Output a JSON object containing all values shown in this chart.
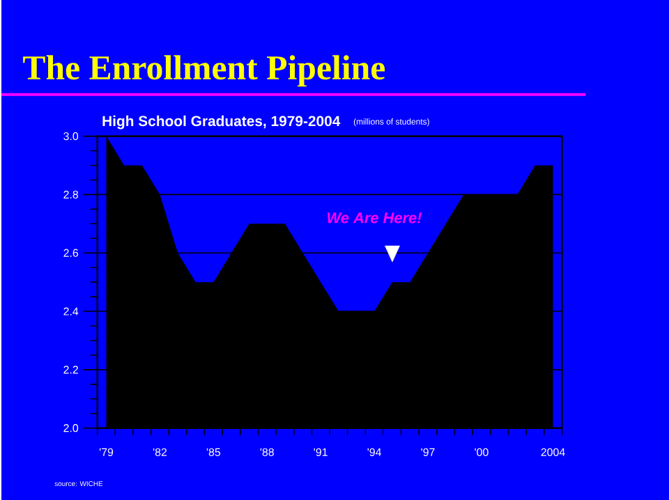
{
  "chart_data": {
    "type": "area",
    "title": "The Enrollment Pipeline",
    "subtitle": "High School Graduates, 1979-2004",
    "ylabel": "(millions of students)",
    "x": [
      1979,
      1980,
      1981,
      1982,
      1983,
      1984,
      1985,
      1986,
      1987,
      1988,
      1989,
      1990,
      1991,
      1992,
      1993,
      1994,
      1995,
      1996,
      1997,
      1998,
      1999,
      2000,
      2001,
      2002,
      2003,
      2004
    ],
    "values": [
      3.0,
      2.9,
      2.9,
      2.8,
      2.6,
      2.5,
      2.5,
      2.6,
      2.7,
      2.7,
      2.7,
      2.6,
      2.5,
      2.4,
      2.4,
      2.4,
      2.5,
      2.5,
      2.6,
      2.7,
      2.8,
      2.8,
      2.8,
      2.8,
      2.9,
      2.9
    ],
    "color": "#000000",
    "xlim": [
      1978.5,
      2004.5
    ],
    "ylim": [
      2.0,
      3.0
    ],
    "xticks": [
      {
        "value": 1979,
        "label": "'79"
      },
      {
        "value": 1982,
        "label": "'82"
      },
      {
        "value": 1985,
        "label": "'85"
      },
      {
        "value": 1988,
        "label": "'88"
      },
      {
        "value": 1991,
        "label": "'91"
      },
      {
        "value": 1994,
        "label": "'94"
      },
      {
        "value": 1997,
        "label": "'97"
      },
      {
        "value": 2000,
        "label": "'00"
      },
      {
        "value": 2004,
        "label": "2004"
      },
      {
        "value": 1978.5,
        "label": null
      },
      {
        "value": 1979.5,
        "label": null
      },
      {
        "value": 1980.5,
        "label": null
      },
      {
        "value": 1981.5,
        "label": null
      },
      {
        "value": 1982.5,
        "label": null
      },
      {
        "value": 1983.5,
        "label": null
      },
      {
        "value": 1984.5,
        "label": null
      },
      {
        "value": 1985.5,
        "label": null
      },
      {
        "value": 1986.5,
        "label": null
      },
      {
        "value": 1987.5,
        "label": null
      },
      {
        "value": 1988.5,
        "label": null
      },
      {
        "value": 1989.5,
        "label": null
      },
      {
        "value": 1990.5,
        "label": null
      },
      {
        "value": 1991.5,
        "label": null
      },
      {
        "value": 1992.5,
        "label": null
      },
      {
        "value": 1993.5,
        "label": null
      },
      {
        "value": 1994.5,
        "label": null
      },
      {
        "value": 1995.5,
        "label": null
      },
      {
        "value": 1996.5,
        "label": null
      },
      {
        "value": 1997.5,
        "label": null
      },
      {
        "value": 1998.5,
        "label": null
      },
      {
        "value": 1999.5,
        "label": null
      },
      {
        "value": 2000.5,
        "label": null
      },
      {
        "value": 2001.5,
        "label": null
      },
      {
        "value": 2002.5,
        "label": null
      },
      {
        "value": 2003.5,
        "label": null
      },
      {
        "value": 2004.5,
        "label": null
      }
    ],
    "yticks": [
      {
        "value": 2.0,
        "label": "2.0"
      },
      {
        "value": 2.2,
        "label": "2.2"
      },
      {
        "value": 2.4,
        "label": "2.4"
      },
      {
        "value": 2.6,
        "label": "2.6"
      },
      {
        "value": 2.8,
        "label": "2.8"
      },
      {
        "value": 3.0,
        "label": "3.0"
      },
      {
        "value": 2.05,
        "label": null
      },
      {
        "value": 2.1,
        "label": null
      },
      {
        "value": 2.15,
        "label": null
      },
      {
        "value": 2.25,
        "label": null
      },
      {
        "value": 2.3,
        "label": null
      },
      {
        "value": 2.35,
        "label": null
      },
      {
        "value": 2.45,
        "label": null
      },
      {
        "value": 2.5,
        "label": null
      },
      {
        "value": 2.55,
        "label": null
      },
      {
        "value": 2.65,
        "label": null
      },
      {
        "value": 2.7,
        "label": null
      },
      {
        "value": 2.75,
        "label": null
      },
      {
        "value": 2.85,
        "label": null
      },
      {
        "value": 2.9,
        "label": null
      },
      {
        "value": 2.95,
        "label": null
      }
    ],
    "grid": "y",
    "annotations": [
      "We Are Here!",
      "source: WICHE"
    ]
  }
}
